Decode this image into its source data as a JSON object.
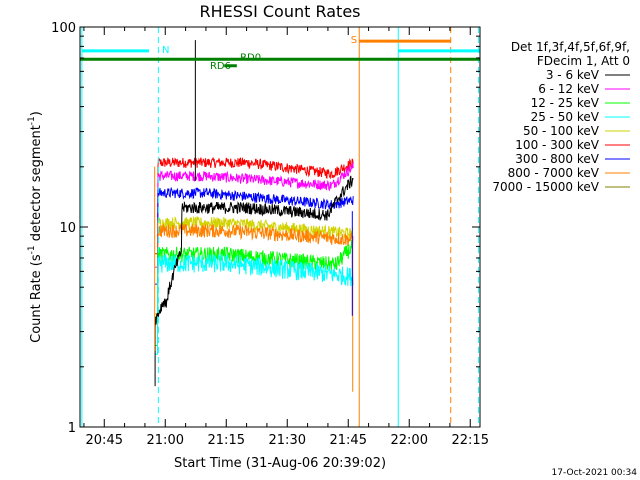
{
  "chart_data": {
    "type": "line",
    "title": "RHESSI Count Rates",
    "xlabel": "Start Time (31-Aug-06 20:39:02)",
    "ylabel_main": "Count Rate (s",
    "ylabel_sup1": "-1",
    "ylabel_mid": " detector segment",
    "ylabel_sup2": "-1",
    "ylabel_end": ")",
    "y_scale": "log",
    "ylim": [
      1,
      100
    ],
    "xlim_minutes": [
      20.6,
      117.0
    ],
    "ytick_labels": [
      {
        "label": "1",
        "value": 1
      },
      {
        "label": "10",
        "value": 10
      },
      {
        "label": "100",
        "value": 100
      }
    ],
    "xtick_labels": [
      {
        "label": "20:45",
        "minute": 45
      },
      {
        "label": "21:00",
        "minute": 60
      },
      {
        "label": "21:15",
        "minute": 75
      },
      {
        "label": "21:30",
        "minute": 90
      },
      {
        "label": "21:45",
        "minute": 105
      },
      {
        "label": "22:00",
        "minute": 120
      },
      {
        "label": "22:15",
        "minute": 135
      }
    ],
    "x_start_minute": 39.0333,
    "x_end_minute": 137.4,
    "legend": {
      "header1": "Det 1f,3f,4f,5f,6f,9f,",
      "header2": "FDecim 1, Att 0",
      "placement": "right"
    },
    "series": [
      {
        "name": "3 - 6 keV",
        "color": "#000000"
      },
      {
        "name": "6 - 12 keV",
        "color": "#ff00ff"
      },
      {
        "name": "12 - 25 keV",
        "color": "#00ff00"
      },
      {
        "name": "25 - 50 keV",
        "color": "#00ffff"
      },
      {
        "name": "50 - 100 keV",
        "color": "#d2d200"
      },
      {
        "name": "100 - 300 keV",
        "color": "#ff0000"
      },
      {
        "name": "300 - 800 keV",
        "color": "#0000ff"
      },
      {
        "name": "800 - 7000 keV",
        "color": "#ff8000"
      },
      {
        "name": "7000 - 15000 keV",
        "color": "#808000"
      }
    ],
    "attenuator_bars": [
      {
        "label": "N",
        "color": "#00ffff"
      },
      {
        "label": "S",
        "color": "#ff8000"
      }
    ],
    "flag_labels": [
      {
        "label": "RD6",
        "color": "#008000"
      },
      {
        "label": "RD0",
        "color": "#008000"
      }
    ]
  },
  "timestamp": "17-Oct-2021 00:34"
}
